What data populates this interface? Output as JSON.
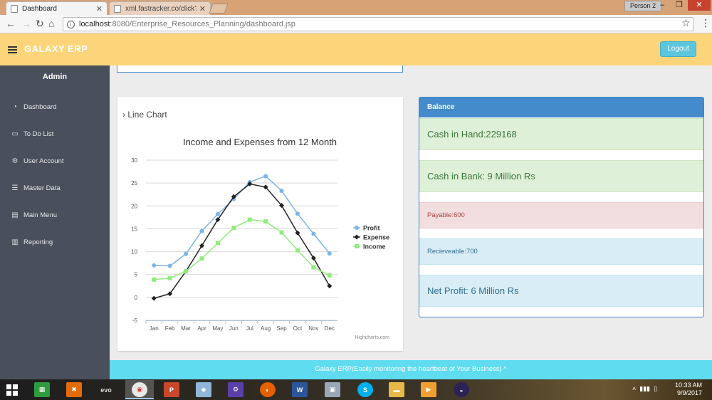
{
  "browser": {
    "tabs": [
      {
        "label": "Dashboard",
        "active": true
      },
      {
        "label": "xml.fastracker.co/click?i=",
        "active": false
      }
    ],
    "profile": "Person 2",
    "url_host": "localhost",
    "url_rest": ":8080/Enterprise_Resources_Planning/dashboard.jsp"
  },
  "header": {
    "brand": "GALAXY ERP",
    "logout_label": "Logout"
  },
  "sidebar": {
    "user": "Admin",
    "items": [
      {
        "label": "Dashboard",
        "icon": "tachometer-icon"
      },
      {
        "label": "To Do List",
        "icon": "monitor-icon"
      },
      {
        "label": "User Account",
        "icon": "cogs-icon"
      },
      {
        "label": "Master Data",
        "icon": "list-icon"
      },
      {
        "label": "Main Menu",
        "icon": "book-icon"
      },
      {
        "label": "Reporting",
        "icon": "bar-chart-icon"
      }
    ]
  },
  "chart_card": {
    "heading": "Line Chart",
    "credit": "Highcharts.com"
  },
  "chart_data": {
    "type": "line",
    "title": "Income and Expenses from 12 Month",
    "xlabel": "",
    "ylabel": "",
    "categories": [
      "Jan",
      "Feb",
      "Mar",
      "Apr",
      "May",
      "Jun",
      "Jul",
      "Aug",
      "Sep",
      "Oct",
      "Nov",
      "Dec"
    ],
    "yticks": [
      -5,
      0,
      5,
      10,
      15,
      20,
      25,
      30
    ],
    "ylim": [
      -5,
      30
    ],
    "grid": true,
    "legend_position": "right",
    "series": [
      {
        "name": "Profit",
        "color": "#7cb5ec",
        "marker": "circle",
        "values": [
          7.0,
          6.9,
          9.5,
          14.5,
          18.2,
          21.5,
          25.2,
          26.5,
          23.3,
          18.3,
          13.9,
          9.6
        ]
      },
      {
        "name": "Expense",
        "color": "#222222",
        "marker": "diamond",
        "values": [
          -0.2,
          0.8,
          5.7,
          11.3,
          17.0,
          22.0,
          24.8,
          24.1,
          20.1,
          14.1,
          8.6,
          2.5
        ]
      },
      {
        "name": "Income",
        "color": "#90ed7d",
        "marker": "square",
        "values": [
          3.9,
          4.2,
          5.7,
          8.5,
          11.9,
          15.2,
          17.0,
          16.6,
          14.2,
          10.3,
          6.6,
          4.8
        ]
      }
    ]
  },
  "balance": {
    "heading": "Balance",
    "cash_in_hand": "Cash in Hand:229168",
    "cash_in_bank": "Cash in Bank: 9 Million Rs",
    "payable": "Payable:600",
    "receivable": "Recieveable:700",
    "net_profit": "Net Profit: 6 Million Rs"
  },
  "footer": {
    "text": "Galaxy ERP(Easily monitoring the heartbeat of Your Business) ^"
  },
  "taskbar": {
    "time": "10:33 AM",
    "date": "9/9/2017"
  }
}
